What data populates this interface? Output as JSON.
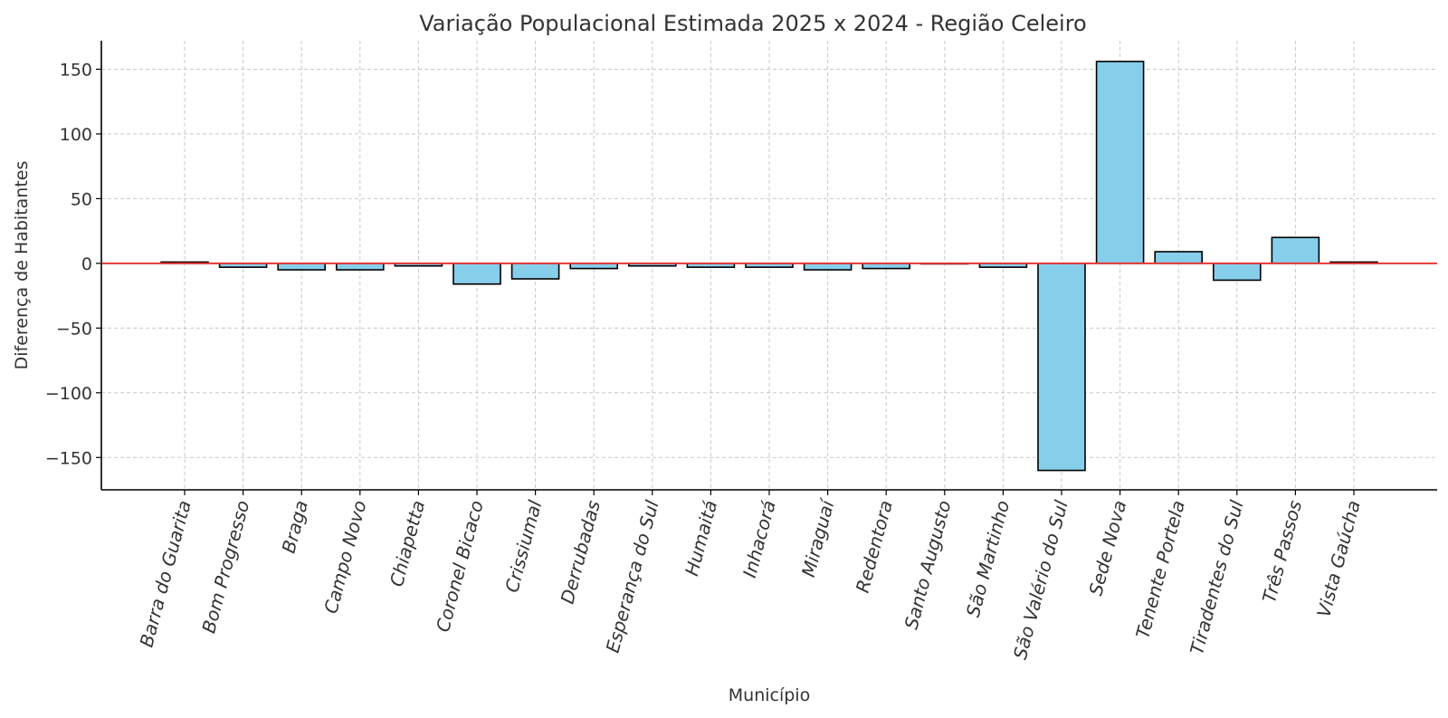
{
  "chart_data": {
    "type": "bar",
    "title": "Variação Populacional Estimada 2025 x 2024 - Região Celeiro",
    "xlabel": "Município",
    "ylabel": "Diferença de Habitantes",
    "ylim": [
      -175,
      172
    ],
    "yticks": [
      150,
      100,
      50,
      0,
      -50,
      -100,
      -150
    ],
    "ytick_labels": [
      "150",
      "100",
      "50",
      "0",
      "−50",
      "−100",
      "−150"
    ],
    "grid": true,
    "bar_color": "#87ceeb",
    "bar_edge_color": "#000000",
    "zero_line_color": "#e53935",
    "categories": [
      "Barra do Guarita",
      "Bom Progresso",
      "Braga",
      "Campo Novo",
      "Chiapetta",
      "Coronel Bicaco",
      "Crissiumal",
      "Derrubadas",
      "Esperança do Sul",
      "Humaitá",
      "Inhacorá",
      "Miraguaí",
      "Redentora",
      "Santo Augusto",
      "São Martinho",
      "São Valério do Sul",
      "Sede Nova",
      "Tenente Portela",
      "Tiradentes do Sul",
      "Três Passos",
      "Vista Gaúcha"
    ],
    "values": [
      1,
      -3,
      -5,
      -5,
      -2,
      -16,
      -12,
      -4,
      -2,
      -3,
      -3,
      -5,
      -4,
      0,
      -3,
      -160,
      156,
      9,
      -13,
      20,
      1
    ]
  }
}
